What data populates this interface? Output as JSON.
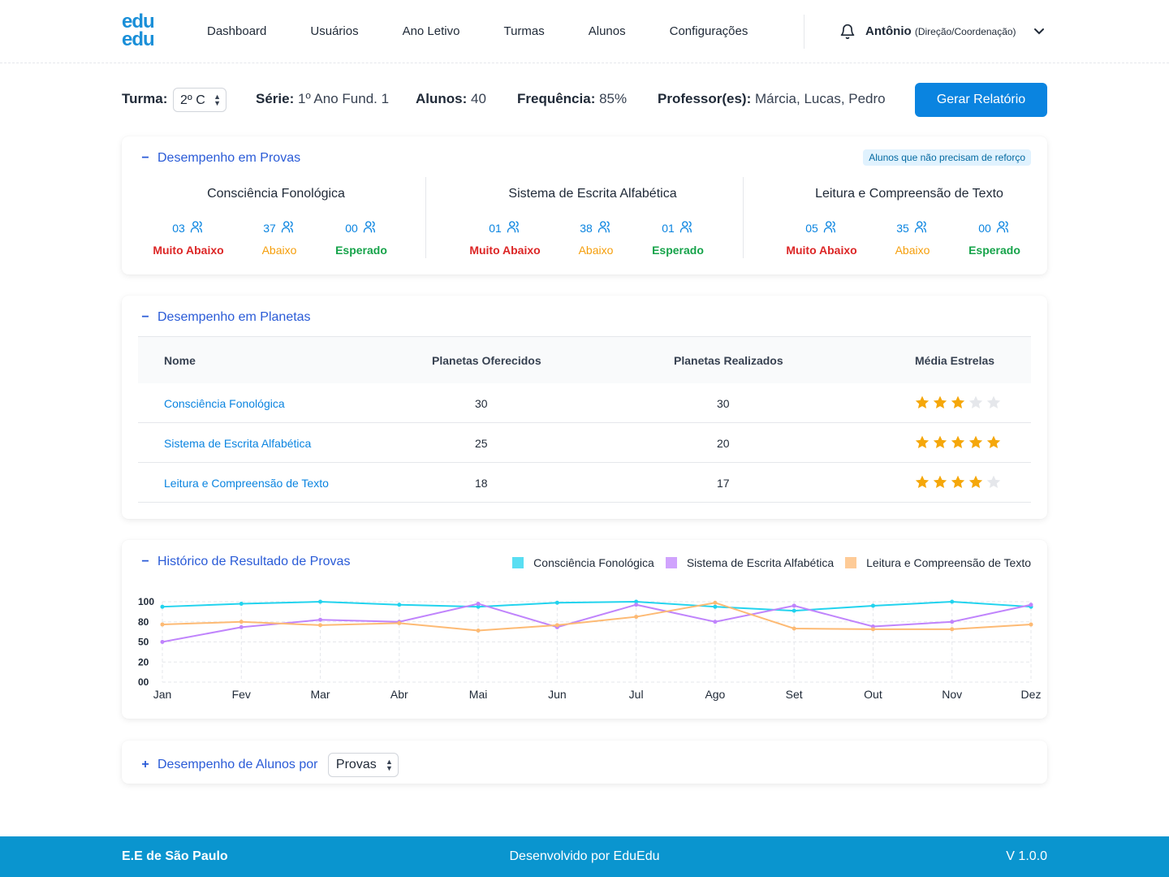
{
  "logo": {
    "line1": "edu",
    "line2": "edu"
  },
  "nav": [
    "Dashboard",
    "Usuários",
    "Ano Letivo",
    "Turmas",
    "Alunos",
    "Configurações"
  ],
  "user": {
    "name": "Antônio",
    "role": "(Direção/Coordenação)"
  },
  "class_info": {
    "turma_label": "Turma:",
    "turma_value": "2º C",
    "serie_label": "Série:",
    "serie_value": "1º Ano Fund. 1",
    "alunos_label": "Alunos:",
    "alunos_value": "40",
    "freq_label": "Frequência:",
    "freq_value": "85%",
    "prof_label": "Professor(es):",
    "prof_value": "Márcia, Lucas, Pedro",
    "report_button": "Gerar Relatório"
  },
  "provas": {
    "title": "Desempenho em Provas",
    "toggle": "−",
    "badge": "Alunos que não precisam de reforço",
    "labels": {
      "muito_abaixo": "Muito Abaixo",
      "abaixo": "Abaixo",
      "esperado": "Esperado"
    },
    "columns": [
      {
        "name": "Consciência Fonológica",
        "muito_abaixo": "03",
        "abaixo": "37",
        "esperado": "00"
      },
      {
        "name": "Sistema de Escrita Alfabética",
        "muito_abaixo": "01",
        "abaixo": "38",
        "esperado": "01"
      },
      {
        "name": "Leitura e Compreensão de Texto",
        "muito_abaixo": "05",
        "abaixo": "35",
        "esperado": "00"
      }
    ]
  },
  "planetas": {
    "title": "Desempenho em Planetas",
    "toggle": "−",
    "headers": {
      "nome": "Nome",
      "oferecidos": "Planetas Oferecidos",
      "realizados": "Planetas Realizados",
      "estrelas": "Média Estrelas"
    },
    "rows": [
      {
        "nome": "Consciência Fonológica",
        "oferecidos": "30",
        "realizados": "30",
        "stars": 3
      },
      {
        "nome": "Sistema de Escrita Alfabética",
        "oferecidos": "25",
        "realizados": "20",
        "stars": 5
      },
      {
        "nome": "Leitura e Compreensão de Texto",
        "oferecidos": "18",
        "realizados": "17",
        "stars": 4
      }
    ]
  },
  "historico": {
    "title": "Histórico de Resultado de Provas",
    "toggle": "−"
  },
  "chart_data": {
    "type": "line",
    "x": [
      "Jan",
      "Fev",
      "Mar",
      "Abr",
      "Mai",
      "Jun",
      "Jul",
      "Ago",
      "Set",
      "Out",
      "Nov",
      "Dez"
    ],
    "y_ticks": [
      "100",
      "80",
      "50",
      "20",
      "00"
    ],
    "legend_position": "top-right",
    "grid": true,
    "series": [
      {
        "name": "Consciência Fonológica",
        "color": "#22d3ee",
        "values": [
          95,
          98,
          100,
          97,
          95,
          99,
          100,
          95,
          91,
          96,
          100,
          95
        ]
      },
      {
        "name": "Sistema de Escrita Alfabética",
        "color": "#c084fc",
        "values": [
          50,
          72,
          82,
          80,
          98,
          72,
          97,
          80,
          96,
          73,
          80,
          97
        ]
      },
      {
        "name": "Leitura e Compreensão de Texto",
        "color": "#fdba74",
        "values": [
          76,
          80,
          75,
          78,
          67,
          75,
          85,
          99,
          70,
          69,
          69,
          76
        ]
      }
    ]
  },
  "alunos_por": {
    "title": "Desempenho de Alunos por",
    "toggle": "+",
    "select_value": "Provas"
  },
  "footer": {
    "left": "E.E de São Paulo",
    "center": "Desenvolvido por EduEdu",
    "right": "V 1.0.0"
  }
}
